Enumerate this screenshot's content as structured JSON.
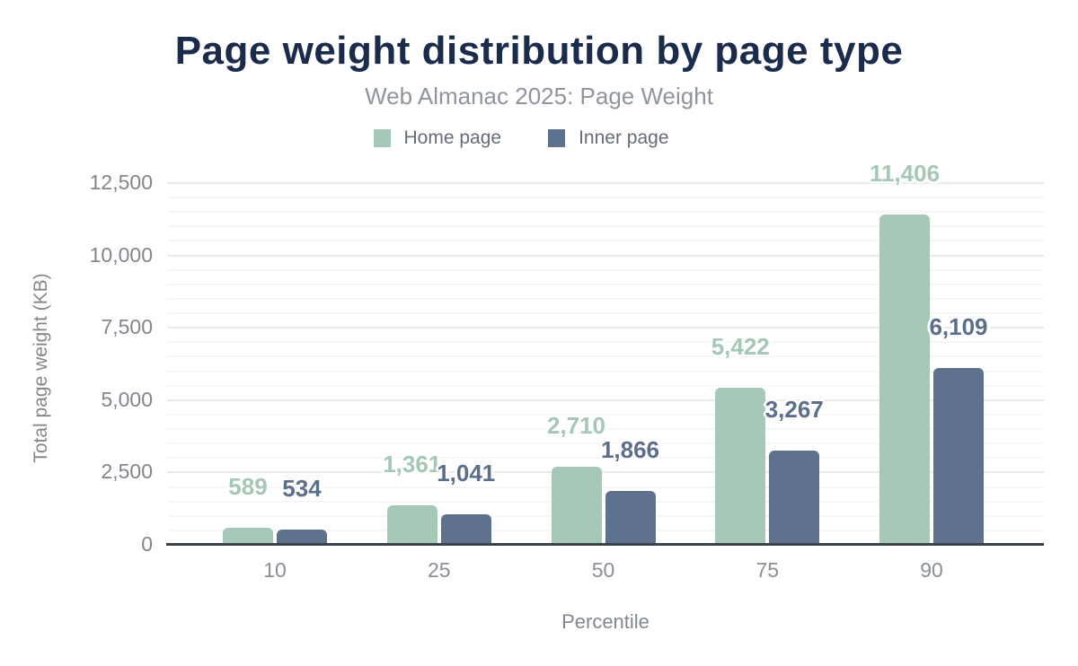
{
  "header": {
    "title": "Page weight distribution by page type",
    "subtitle": "Web Almanac 2025: Page Weight"
  },
  "legend": [
    {
      "label": "Home page",
      "color": "#a6c8b8"
    },
    {
      "label": "Inner page",
      "color": "#5e718d"
    }
  ],
  "colors": {
    "home_bar": "#a6c8b8",
    "inner_bar": "#5e718d",
    "home_label_text": "#a4c7b6",
    "inner_label_text": "#5b6e8c",
    "title_text": "#1a2b4c",
    "axis_line": "#3c4249",
    "tick_text": "#82878f"
  },
  "chart_data": {
    "type": "bar",
    "title": "Page weight distribution by page type",
    "subtitle": "Web Almanac 2025: Page Weight",
    "categories": [
      "10",
      "25",
      "50",
      "75",
      "90"
    ],
    "series": [
      {
        "name": "Home page",
        "color": "#a6c8b8",
        "label_color": "#a4c7b6",
        "values": [
          589,
          1361,
          2710,
          5422,
          11406
        ],
        "labels": [
          "589",
          "1,361",
          "2,710",
          "5,422",
          "11,406"
        ]
      },
      {
        "name": "Inner page",
        "color": "#5e718d",
        "label_color": "#5b6e8c",
        "values": [
          534,
          1041,
          1866,
          3267,
          6109
        ],
        "labels": [
          "534",
          "1,041",
          "1,866",
          "3,267",
          "6,109"
        ]
      }
    ],
    "xlabel": "Percentile",
    "ylabel": "Total page weight (KB)",
    "ylim": [
      0,
      12500
    ],
    "yticks": [
      {
        "value": 0,
        "label": "0"
      },
      {
        "value": 2500,
        "label": "2,500"
      },
      {
        "value": 5000,
        "label": "5,000"
      },
      {
        "value": 7500,
        "label": "7,500"
      },
      {
        "value": 10000,
        "label": "10,000"
      },
      {
        "value": 12500,
        "label": "12,500"
      }
    ],
    "grid": {
      "minor_step": 500,
      "major_step": 2500,
      "gridlines_on": true
    },
    "legend_position": "top"
  }
}
